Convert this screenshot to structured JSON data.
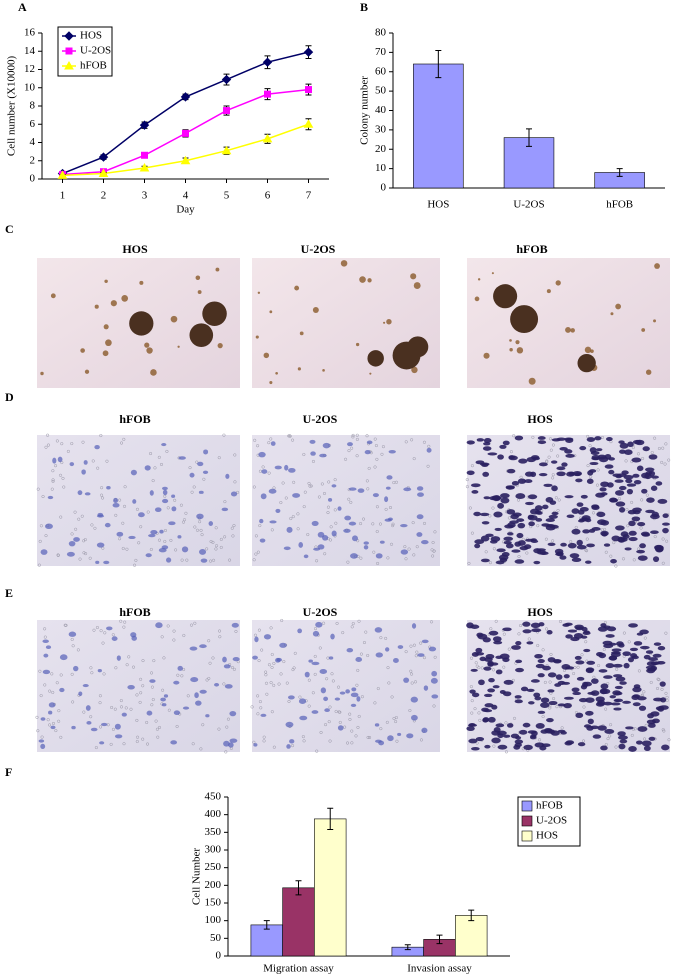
{
  "chart_data": [
    {
      "type": "line",
      "label": "A",
      "x": [
        1,
        2,
        3,
        4,
        5,
        6,
        7
      ],
      "xlim": [
        0.5,
        7.5
      ],
      "xticks": [
        1,
        2,
        3,
        4,
        5,
        6,
        7
      ],
      "ylim": [
        0,
        16
      ],
      "yticks": [
        0,
        2,
        4,
        6,
        8,
        10,
        12,
        14,
        16
      ],
      "xlabel": "Day",
      "ylabel": "Cell number (X10000)",
      "legend": "upper left",
      "series": [
        {
          "name": "HOS",
          "color": "#000066",
          "marker": "diamond",
          "values": [
            0.6,
            2.4,
            5.9,
            9.0,
            10.9,
            12.8,
            13.9
          ],
          "errors": [
            0.2,
            0.25,
            0.35,
            0.3,
            0.6,
            0.7,
            0.7
          ]
        },
        {
          "name": "U-2OS",
          "color": "#ff00ff",
          "marker": "square",
          "values": [
            0.5,
            0.8,
            2.6,
            5.0,
            7.5,
            9.3,
            9.8
          ],
          "errors": [
            0.1,
            0.1,
            0.3,
            0.4,
            0.5,
            0.6,
            0.6
          ]
        },
        {
          "name": "hFOB",
          "color": "#ffff00",
          "marker": "triangle",
          "values": [
            0.4,
            0.6,
            1.2,
            2.0,
            3.1,
            4.4,
            6.0
          ],
          "errors": [
            0.1,
            0.1,
            0.2,
            0.3,
            0.4,
            0.5,
            0.6
          ]
        }
      ]
    },
    {
      "type": "bar",
      "label": "B",
      "categories": [
        "HOS",
        "U-2OS",
        "hFOB"
      ],
      "values": [
        64,
        26,
        8
      ],
      "errors": [
        7,
        4.5,
        2
      ],
      "color": "#9999ff",
      "ylim": [
        0,
        80
      ],
      "yticks": [
        0,
        10,
        20,
        30,
        40,
        50,
        60,
        70,
        80
      ],
      "ylabel": "Colony number"
    },
    {
      "type": "bar",
      "label": "F",
      "categories": [
        "Migration assay",
        "Invasion assay"
      ],
      "ylim": [
        0,
        450
      ],
      "yticks": [
        0,
        50,
        100,
        150,
        200,
        250,
        300,
        350,
        400,
        450
      ],
      "ylabel": "Cell Number",
      "legend": "right",
      "series": [
        {
          "name": "hFOB",
          "color": "#9999ff",
          "values": [
            88,
            25
          ],
          "errors": [
            12,
            7
          ]
        },
        {
          "name": "U-2OS",
          "color": "#993366",
          "values": [
            193,
            47
          ],
          "errors": [
            20,
            12
          ]
        },
        {
          "name": "HOS",
          "color": "#ffffcc",
          "values": [
            388,
            115
          ],
          "errors": [
            30,
            15
          ]
        }
      ]
    }
  ],
  "image_panels": [
    {
      "label": "C",
      "titles": [
        "HOS",
        "U-2OS",
        "hFOB"
      ]
    },
    {
      "label": "D",
      "titles": [
        "hFOB",
        "U-2OS",
        "HOS"
      ]
    },
    {
      "label": "E",
      "titles": [
        "hFOB",
        "U-2OS",
        "HOS"
      ]
    }
  ]
}
